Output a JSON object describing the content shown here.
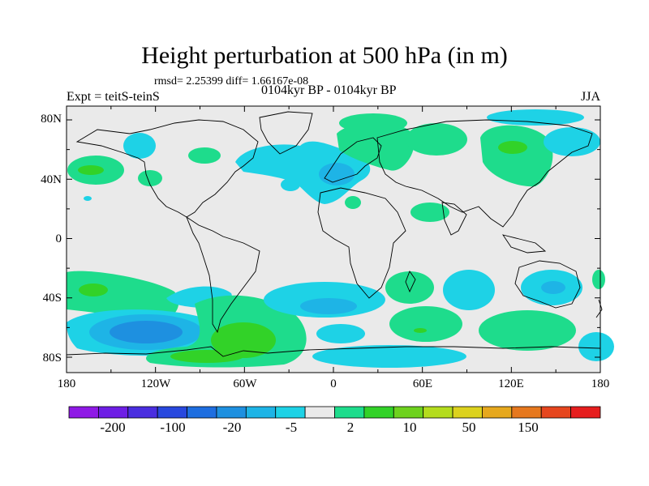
{
  "title": "Height perturbation at 500 hPa (in m)",
  "stats": "rmsd= 2.25399 diff= 1.66167e-08",
  "subtitle": "0104kyr BP - 0104kyr BP",
  "left_label": "Expt = teitS-teinS",
  "right_label": "JJA",
  "lat_labels": [
    "80N",
    "40N",
    "0",
    "40S",
    "80S"
  ],
  "lon_labels": [
    "180",
    "120W",
    "60W",
    "0",
    "60E",
    "120E",
    "180"
  ],
  "colorbar": {
    "colors": [
      "#8f19e6",
      "#6e1ee5",
      "#4a2ee0",
      "#2848de",
      "#1e6ee0",
      "#1e90e0",
      "#1eb4e6",
      "#1ed2e6",
      "#eaeaea",
      "#1edc8c",
      "#32d228",
      "#6ed21e",
      "#b4dc1e",
      "#dcd21e",
      "#e6a81e",
      "#e6781e",
      "#e6461e",
      "#e61e1e"
    ],
    "labels": [
      "-200",
      "-100",
      "-20",
      "-5",
      "2",
      "10",
      "50",
      "150"
    ]
  },
  "colors": {
    "land_bg": "#eaeaea",
    "light_green": "#1edc8c",
    "green": "#32d228",
    "light_blue": "#1ed2e6",
    "mid_blue": "#1eb4e6",
    "blue": "#1e90e0"
  }
}
